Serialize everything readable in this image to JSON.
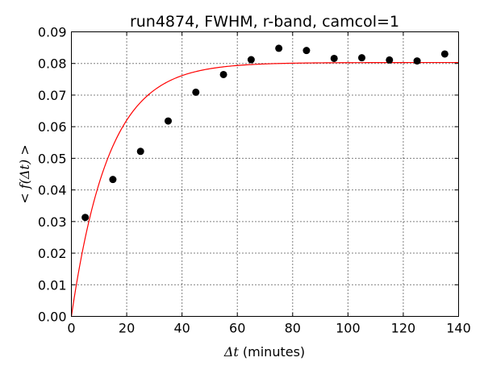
{
  "chart_data": {
    "type": "scatter",
    "title": "run4874, FWHM, r-band, camcol=1",
    "xlabel_math": "Δt",
    "xlabel_text": " (minutes)",
    "ylabel": "< f(Δt) >",
    "xlim": [
      0,
      140
    ],
    "ylim": [
      0,
      0.09
    ],
    "x_ticks": [
      0,
      20,
      40,
      60,
      80,
      100,
      120,
      140
    ],
    "y_ticks": [
      0.0,
      0.01,
      0.02,
      0.03,
      0.04,
      0.05,
      0.06,
      0.07,
      0.08,
      0.09
    ],
    "y_tick_labels": [
      "0.00",
      "0.01",
      "0.02",
      "0.03",
      "0.04",
      "0.05",
      "0.06",
      "0.07",
      "0.08",
      "0.09"
    ],
    "grid": true,
    "series": [
      {
        "kind": "points",
        "color": "#000000",
        "x": [
          5,
          15,
          25,
          35,
          45,
          55,
          65,
          75,
          85,
          95,
          105,
          115,
          125,
          135
        ],
        "y": [
          0.0313,
          0.0433,
          0.0522,
          0.0618,
          0.0709,
          0.0765,
          0.0812,
          0.0848,
          0.0841,
          0.0816,
          0.0818,
          0.0811,
          0.0808,
          0.083
        ]
      },
      {
        "kind": "fit-curve",
        "color": "#ff0000",
        "model": "a*(1-exp(-x/tau))",
        "a": 0.0803,
        "tau": 13.5
      }
    ]
  }
}
